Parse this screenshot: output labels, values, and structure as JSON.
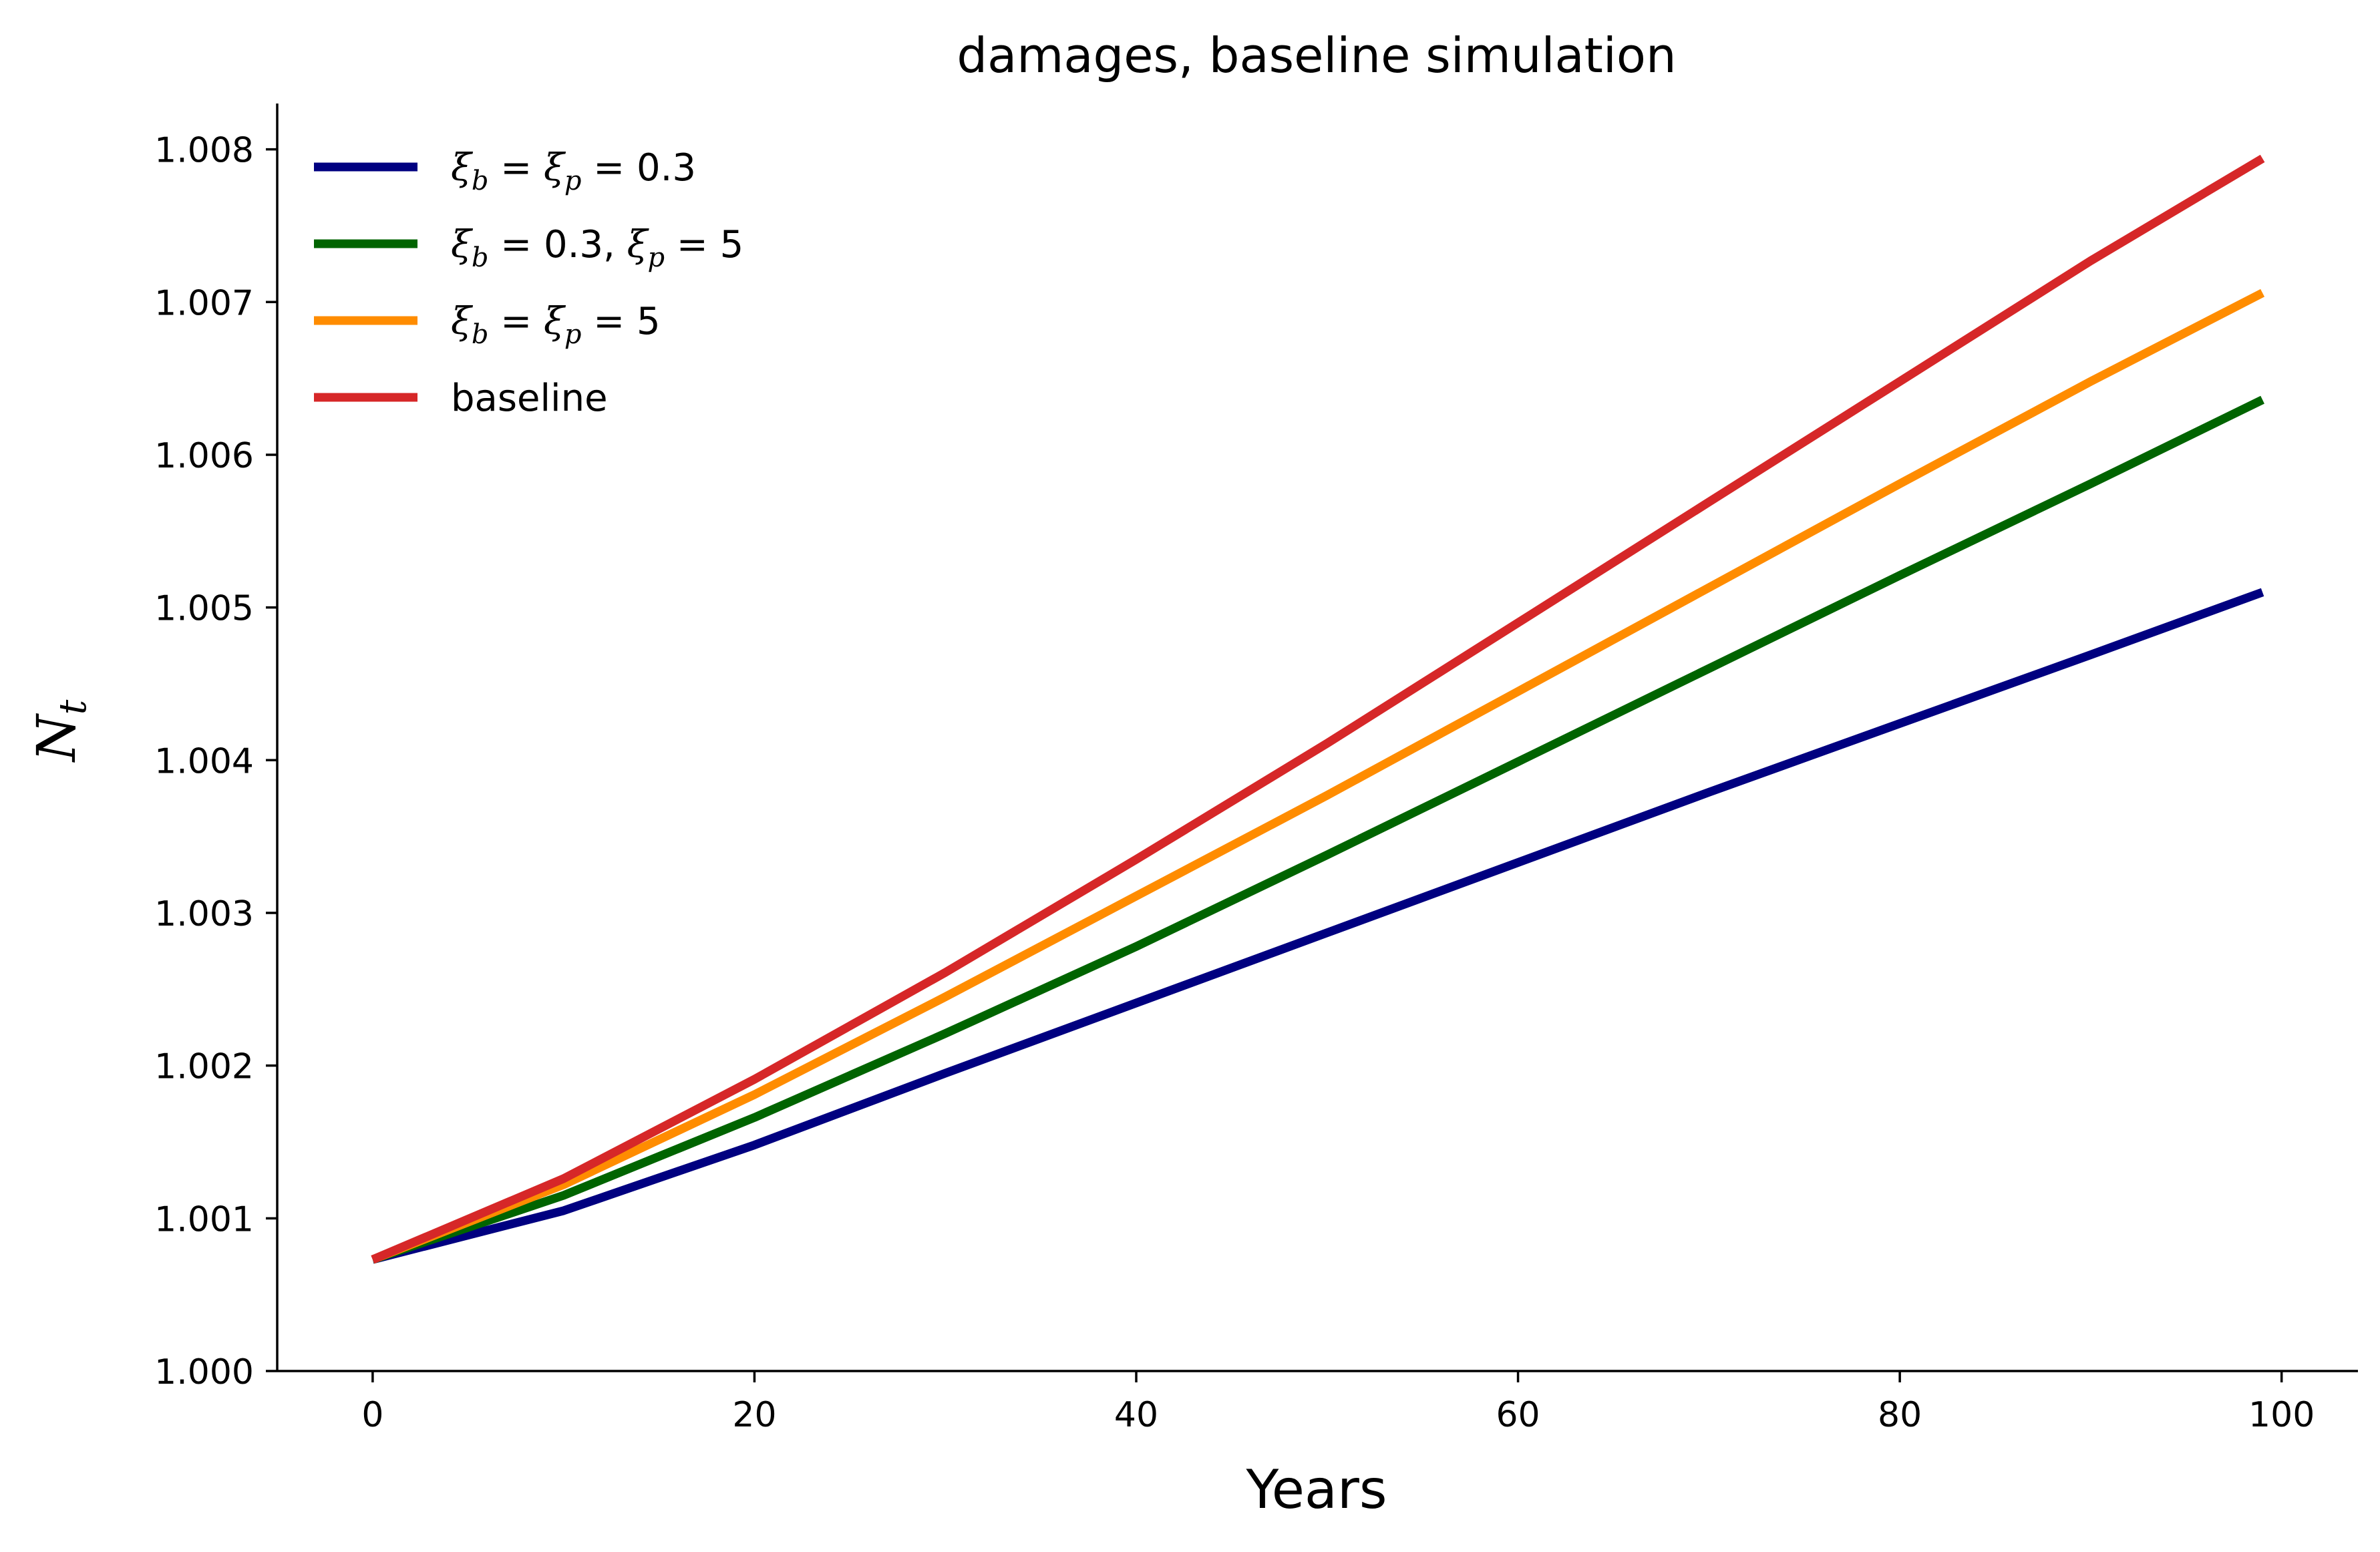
{
  "chart_data": {
    "type": "line",
    "title": "damages, baseline simulation",
    "xlabel": "Years",
    "ylabel": "N",
    "ylabel_sub": "t",
    "xlim": [
      -5,
      104
    ],
    "ylim": [
      1.0,
      1.0083
    ],
    "xticks": [
      0,
      20,
      40,
      60,
      80,
      100
    ],
    "xtick_labels": [
      "0",
      "20",
      "40",
      "60",
      "80",
      "100"
    ],
    "yticks": [
      1.0,
      1.001,
      1.002,
      1.003,
      1.004,
      1.005,
      1.006,
      1.007,
      1.008
    ],
    "ytick_labels": [
      "1.000",
      "1.001",
      "1.002",
      "1.003",
      "1.004",
      "1.005",
      "1.006",
      "1.007",
      "1.008"
    ],
    "grid": false,
    "legend_position": "top-left",
    "x": [
      0,
      10,
      20,
      30,
      40,
      50,
      60,
      70,
      80,
      90,
      99
    ],
    "series": [
      {
        "name": "ξb = ξp = 0.3",
        "legend": [
          {
            "t": "ξ",
            "i": true
          },
          {
            "t": "b",
            "sub": true,
            "i": true
          },
          {
            "t": " = "
          },
          {
            "t": "ξ",
            "i": true
          },
          {
            "t": "p",
            "sub": true,
            "i": true
          },
          {
            "t": " = 0.3"
          }
        ],
        "color": "#000080",
        "values": [
          1.00073,
          1.00105,
          1.00148,
          1.00195,
          1.00241,
          1.00287,
          1.00333,
          1.00379,
          1.00424,
          1.00469,
          1.0051
        ]
      },
      {
        "name": "ξb = 0.3, ξp = 5",
        "legend": [
          {
            "t": "ξ",
            "i": true
          },
          {
            "t": "b",
            "sub": true,
            "i": true
          },
          {
            "t": " = 0.3, "
          },
          {
            "t": "ξ",
            "i": true
          },
          {
            "t": "p",
            "sub": true,
            "i": true
          },
          {
            "t": " = 5"
          }
        ],
        "color": "#006400",
        "values": [
          1.00073,
          1.00115,
          1.00166,
          1.00221,
          1.00278,
          1.00338,
          1.00399,
          1.0046,
          1.00521,
          1.00581,
          1.00636
        ]
      },
      {
        "name": "ξb = ξp = 5",
        "legend": [
          {
            "t": "ξ",
            "i": true
          },
          {
            "t": "b",
            "sub": true,
            "i": true
          },
          {
            "t": " = "
          },
          {
            "t": "ξ",
            "i": true
          },
          {
            "t": "p",
            "sub": true,
            "i": true
          },
          {
            "t": " = 5"
          }
        ],
        "color": "#ff8c00",
        "values": [
          1.00073,
          1.00122,
          1.00181,
          1.00245,
          1.00311,
          1.00377,
          1.00445,
          1.00513,
          1.00581,
          1.00648,
          1.00706
        ]
      },
      {
        "name": "baseline",
        "legend": [
          {
            "t": "baseline"
          }
        ],
        "color": "#d62728",
        "values": [
          1.00073,
          1.00126,
          1.00191,
          1.00261,
          1.00335,
          1.00411,
          1.0049,
          1.00569,
          1.00648,
          1.00727,
          1.00794
        ]
      }
    ]
  }
}
